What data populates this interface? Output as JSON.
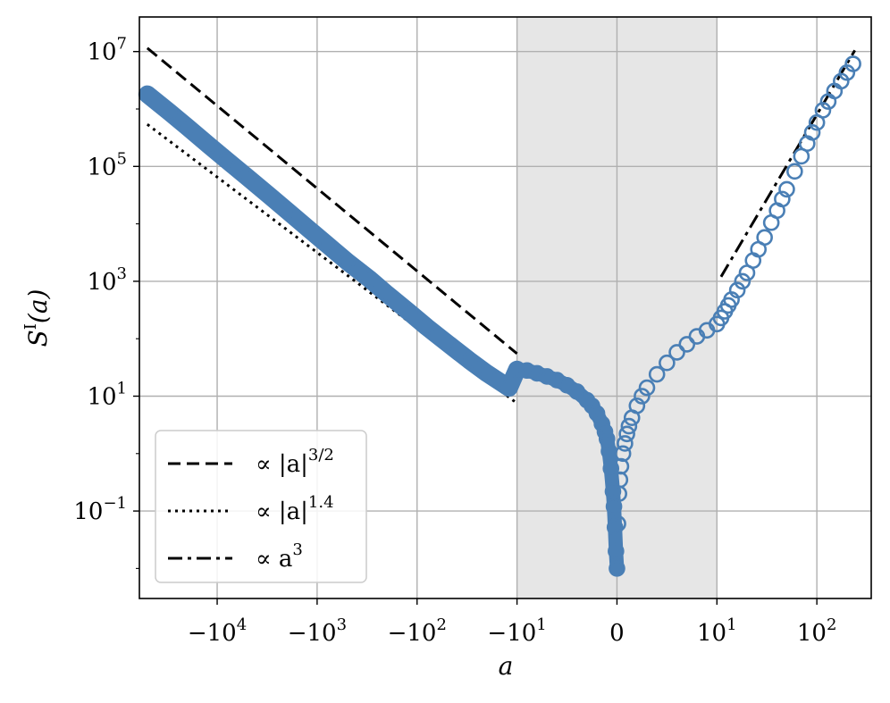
{
  "chart_data": {
    "type": "scatter",
    "xscale": "symlog",
    "xscale_linthresh": 10,
    "yscale": "log",
    "xlim": [
      -60000,
      350
    ],
    "ylim": [
      0.003,
      40000000
    ],
    "grid": true,
    "xlabel": "a",
    "ylabel": "S^I(a)",
    "ylabel_sup": "I",
    "ylabel_base": "S",
    "ylabel_arg": "(a)",
    "shaded_region": [
      -10,
      10
    ],
    "colors": {
      "marker": "#4a7fb5",
      "line": "#000000",
      "shade": "#e6e6e6",
      "grid": "#b0b0b0"
    },
    "x_ticks": [
      {
        "value": -10000,
        "sign": "−",
        "base": "10",
        "exp": "4"
      },
      {
        "value": -1000,
        "sign": "−",
        "base": "10",
        "exp": "3"
      },
      {
        "value": -100,
        "sign": "−",
        "base": "10",
        "exp": "2"
      },
      {
        "value": -10,
        "sign": "−",
        "base": "10",
        "exp": "1"
      },
      {
        "value": 0,
        "sign": "",
        "base": "0",
        "exp": ""
      },
      {
        "value": 10,
        "sign": "",
        "base": "10",
        "exp": "1"
      },
      {
        "value": 100,
        "sign": "",
        "base": "10",
        "exp": "2"
      }
    ],
    "y_ticks": [
      {
        "value": 0.1,
        "base": "10",
        "exp": "−1"
      },
      {
        "value": 10,
        "base": "10",
        "exp": "1"
      },
      {
        "value": 1000,
        "base": "10",
        "exp": "3"
      },
      {
        "value": 100000,
        "base": "10",
        "exp": "5"
      },
      {
        "value": 10000000,
        "base": "10",
        "exp": "7"
      }
    ],
    "series": [
      {
        "kind": "markers",
        "x": [
          -50000,
          -30000,
          -20000,
          -12000,
          -8000,
          -5000,
          -3000,
          -2000,
          -1200,
          -800,
          -500,
          -300,
          -200,
          -120,
          -80,
          -50,
          -30,
          -20,
          -12,
          -10,
          -9,
          -8,
          -7,
          -6,
          -5,
          -4,
          -3,
          -2.5,
          -2,
          -1.5,
          -1.2,
          -1,
          -0.8,
          -0.6,
          -0.4,
          -0.3,
          -0.2,
          -0.1,
          0,
          0.1,
          0.2,
          0.3,
          0.4,
          0.6,
          0.8,
          1,
          1.2,
          1.5,
          2,
          2.5,
          3,
          4,
          5,
          6,
          7,
          8,
          9,
          10,
          11,
          12,
          13,
          14,
          16,
          18,
          20,
          23,
          26,
          30,
          35,
          40,
          45,
          50,
          60,
          70,
          80,
          90,
          100,
          115,
          130,
          150,
          175,
          200,
          230
        ],
        "y": [
          1800000,
          880000,
          490000,
          230000,
          128000,
          65000,
          31000,
          17000,
          8000,
          4400,
          2200,
          1100,
          600,
          290,
          160,
          84,
          42,
          25,
          14,
          29,
          28,
          25,
          22,
          19,
          15.5,
          12,
          8.5,
          6.8,
          5,
          3.3,
          2.4,
          1.8,
          1.1,
          0.55,
          0.22,
          0.12,
          0.052,
          0.02,
          0.01,
          0.06,
          0.2,
          0.35,
          0.6,
          1.0,
          1.5,
          2.2,
          3,
          4.2,
          6.8,
          10,
          14,
          24,
          38,
          58,
          80,
          110,
          140,
          180,
          230,
          300,
          380,
          480,
          700,
          1000,
          1400,
          2300,
          3600,
          5800,
          10500,
          17000,
          27000,
          40000,
          82000,
          150000,
          250000,
          390000,
          580000,
          950000,
          1350000,
          2050000,
          3050000,
          4300000,
          6100000
        ]
      },
      {
        "kind": "line",
        "style": "dashed",
        "x": [
          -50000,
          -10
        ],
        "y": [
          11500000,
          55
        ]
      },
      {
        "kind": "line",
        "style": "dotted",
        "x": [
          -50000,
          -10
        ],
        "y": [
          540000,
          7.5
        ]
      },
      {
        "kind": "line",
        "style": "dashdot",
        "x": [
          11,
          240
        ],
        "y": [
          1200,
          10500000
        ]
      }
    ],
    "legend": {
      "placement": "lower-left",
      "entries": [
        {
          "style": "dashed",
          "prefix": "∝ |a|",
          "sup": "3/2"
        },
        {
          "style": "dotted",
          "prefix": "∝ |a|",
          "sup": "1.4"
        },
        {
          "style": "dashdot",
          "prefix": "∝ a",
          "sup": "3"
        }
      ]
    }
  }
}
